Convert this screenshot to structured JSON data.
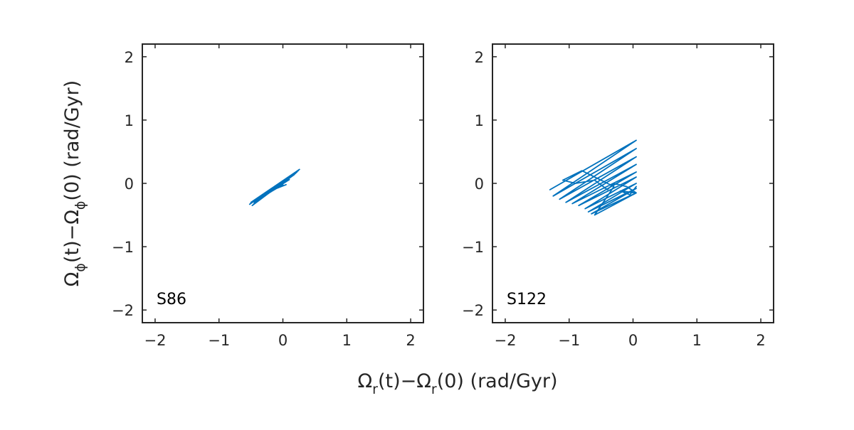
{
  "chart_data": [
    {
      "type": "line",
      "panel_label": "S86",
      "xlim": [
        -2.2,
        2.2
      ],
      "ylim": [
        -2.2,
        2.2
      ],
      "xticks": [
        -2,
        -1,
        0,
        1,
        2
      ],
      "yticks": [
        -2,
        -1,
        0,
        1,
        2
      ],
      "xtick_labels": [
        "−2",
        "−1",
        "0",
        "1",
        "2"
      ],
      "ytick_labels": [
        "−2",
        "−1",
        "0",
        "1",
        "2"
      ],
      "color": "#0072BD",
      "series": [
        {
          "x": [
            -0.52,
            0.26,
            -0.5,
            0.24,
            -0.48,
            0.22,
            -0.5,
            0.2,
            -0.46,
            0.18,
            -0.45,
            0.1,
            -0.4,
            0.05,
            -0.35,
            0.0,
            -0.3,
            -0.05,
            -0.25,
            0.0,
            -0.15,
            0.05
          ],
          "y": [
            -0.33,
            0.22,
            -0.3,
            0.2,
            -0.35,
            0.18,
            -0.31,
            0.16,
            -0.33,
            0.14,
            -0.3,
            0.06,
            -0.26,
            0.03,
            -0.22,
            0.0,
            -0.2,
            -0.05,
            -0.16,
            -0.02,
            -0.1,
            -0.02
          ]
        }
      ]
    },
    {
      "type": "line",
      "panel_label": "S122",
      "xlim": [
        -2.2,
        2.2
      ],
      "ylim": [
        -2.2,
        2.2
      ],
      "xticks": [
        -2,
        -1,
        0,
        1,
        2
      ],
      "yticks": [
        -2,
        -1,
        0,
        1,
        2
      ],
      "xtick_labels": [
        "−2",
        "−1",
        "0",
        "1",
        "2"
      ],
      "ytick_labels": [
        "−2",
        "−1",
        "0",
        "1",
        "2"
      ],
      "color": "#0072BD",
      "series": [
        {
          "x": [
            -1.3,
            0.05,
            -1.25,
            0.05,
            -1.15,
            0.05,
            -1.05,
            0.05,
            -0.95,
            0.05,
            -0.85,
            0.05,
            -0.75,
            0.05,
            -0.7,
            0.05,
            -0.65,
            0.05,
            -0.6,
            -0.3,
            -0.8,
            -1.1,
            -0.9,
            -0.6,
            -0.4,
            -0.3,
            -0.1,
            0.05,
            -0.2,
            -0.05,
            0.05
          ],
          "y": [
            -0.1,
            0.68,
            -0.2,
            0.55,
            -0.25,
            0.42,
            -0.3,
            0.3,
            -0.32,
            0.18,
            -0.35,
            0.1,
            -0.4,
            0.0,
            -0.45,
            -0.08,
            -0.48,
            -0.15,
            -0.5,
            -0.05,
            0.2,
            0.05,
            0.0,
            0.05,
            -0.1,
            0.0,
            -0.05,
            -0.15,
            -0.12,
            -0.18,
            -0.05
          ]
        }
      ]
    }
  ],
  "axis_labels": {
    "x_base_1": "Ω",
    "x_sub_1": "r",
    "x_mid": "(t)−Ω",
    "x_sub_2": "r",
    "x_tail": "(0) (rad/Gyr)",
    "y_base_1": "Ω",
    "y_sub_1": "ϕ",
    "y_mid": "(t)−Ω",
    "y_sub_2": "ϕ",
    "y_tail": "(0) (rad/Gyr)"
  }
}
